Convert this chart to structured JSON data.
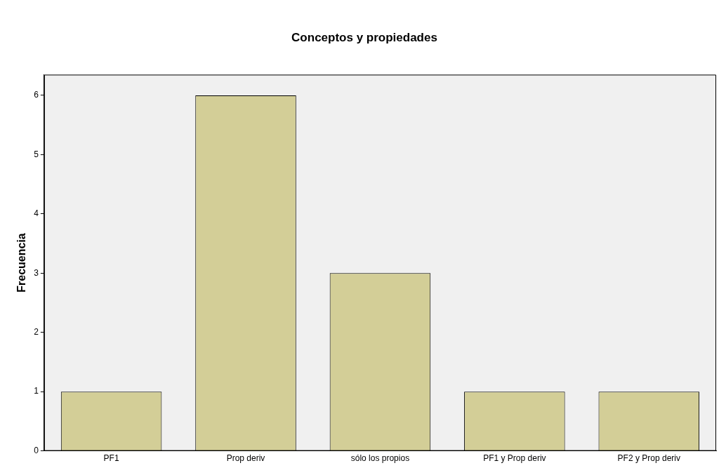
{
  "chart_data": {
    "type": "bar",
    "title": "Conceptos y propiedades",
    "ylabel": "Frecuencia",
    "categories": [
      "PF1",
      "Prop deriv",
      "sólo los propios",
      "PF1 y Prop deriv",
      "PF2 y Prop deriv"
    ],
    "values": [
      1,
      6,
      3,
      1,
      1
    ],
    "color": "#d3ce97",
    "ylim": [
      0,
      6.35
    ],
    "yticks": [
      0,
      1,
      2,
      3,
      4,
      5,
      6
    ],
    "grid": false,
    "legend": false
  }
}
